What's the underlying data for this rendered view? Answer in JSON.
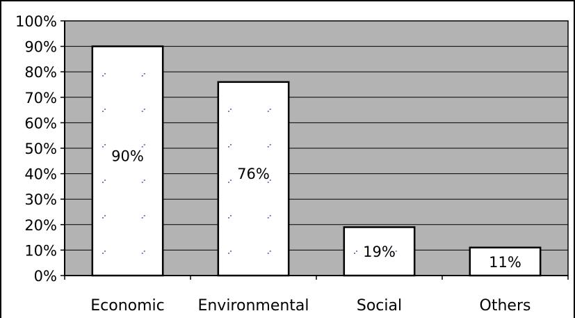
{
  "chart_data": {
    "type": "bar",
    "categories": [
      "Economic",
      "Environmental",
      "Social",
      "Others"
    ],
    "values": [
      90,
      76,
      19,
      11
    ],
    "data_labels": [
      "90%",
      "76%",
      "19%",
      "11%"
    ],
    "ylim": [
      0,
      100
    ],
    "yticks": [
      "0%",
      "10%",
      "20%",
      "30%",
      "40%",
      "50%",
      "60%",
      "70%",
      "80%",
      "90%",
      "100%"
    ],
    "grid": true,
    "legend": "none",
    "colors": {
      "plot_background": "#b3b3b3",
      "bar_fill": "#ffffff",
      "bar_stroke": "#000000",
      "bar_dots": "#7b7bc0",
      "gridline": "#000000"
    }
  }
}
